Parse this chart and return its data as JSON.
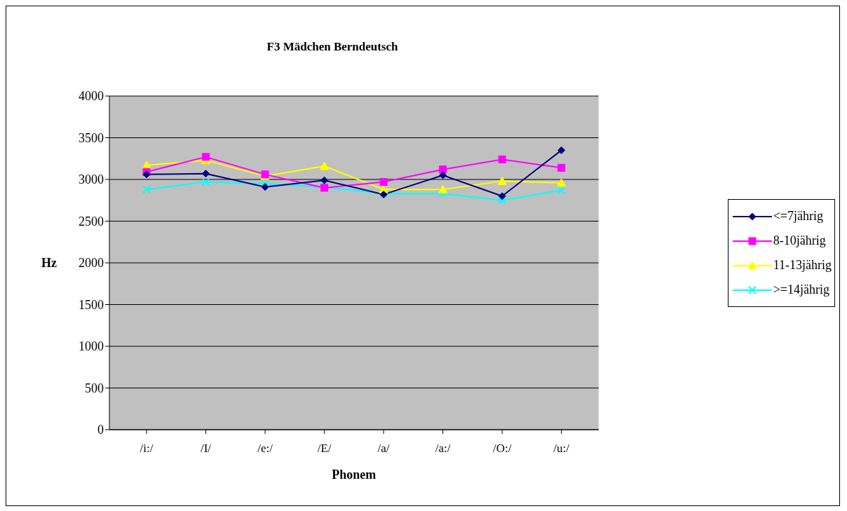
{
  "chart_data": {
    "type": "line",
    "title": "F3 Mädchen Berndeutsch",
    "xlabel": "Phonem",
    "ylabel": "Hz",
    "categories": [
      "/i:/",
      "/I/",
      "/e:/",
      "/E/",
      "/a/",
      "/a:/",
      "/O:/",
      "/u:/"
    ],
    "ylim": [
      0,
      4000
    ],
    "yticks": [
      0,
      500,
      1000,
      1500,
      2000,
      2500,
      3000,
      3500,
      4000
    ],
    "grid": "y",
    "legend": "right",
    "series": [
      {
        "name": "<=7jährig",
        "color": "#000080",
        "marker": "diamond",
        "values": [
          3060,
          3070,
          2910,
          2990,
          2820,
          3050,
          2800,
          3350
        ]
      },
      {
        "name": "8-10jährig",
        "color": "#ff00ff",
        "marker": "square",
        "values": [
          3090,
          3270,
          3060,
          2900,
          2970,
          3120,
          3240,
          3140
        ]
      },
      {
        "name": "11-13jährig",
        "color": "#ffff00",
        "marker": "triangle",
        "values": [
          3170,
          3230,
          3040,
          3160,
          2880,
          2880,
          2980,
          2960
        ]
      },
      {
        "name": ">=14jährig",
        "color": "#00ffff",
        "marker": "cross",
        "values": [
          2880,
          2970,
          2950,
          2910,
          2830,
          2830,
          2750,
          2870
        ]
      }
    ]
  }
}
